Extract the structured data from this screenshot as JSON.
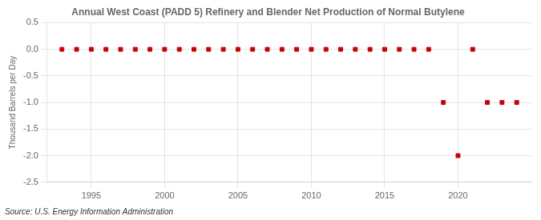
{
  "chart_data": {
    "type": "scatter",
    "title": "Annual West Coast (PADD 5) Refinery and Blender Net Production of Normal Butylene",
    "ylabel": "Thousand Barrels per Day",
    "annotations": [
      "Source: U.S. Energy Information Administration"
    ],
    "x": [
      1993,
      1994,
      1995,
      1996,
      1997,
      1998,
      1999,
      2000,
      2001,
      2002,
      2003,
      2004,
      2005,
      2006,
      2007,
      2008,
      2009,
      2010,
      2011,
      2012,
      2013,
      2014,
      2015,
      2016,
      2017,
      2018,
      2019,
      2020,
      2021,
      2022,
      2023,
      2024
    ],
    "values": [
      0,
      0,
      0,
      0,
      0,
      0,
      0,
      0,
      0,
      0,
      0,
      0,
      0,
      0,
      0,
      0,
      0,
      0,
      0,
      0,
      0,
      0,
      0,
      0,
      0,
      0,
      -1,
      -2,
      0,
      -1,
      -1,
      -1
    ],
    "color": "#cc0000",
    "marker": "square",
    "xlim": [
      1992.0,
      2025.0
    ],
    "ylim": [
      -2.5,
      0.5
    ],
    "xticks": [
      1995,
      2000,
      2005,
      2010,
      2015,
      2020
    ],
    "yticks": [
      0.5,
      {
        "value": 0.0,
        "label": "0.0"
      },
      -0.5,
      {
        "value": -1.0,
        "label": "-1.0"
      },
      -1.5,
      {
        "value": -2.0,
        "label": "-2.0"
      },
      -2.5
    ],
    "grid": true
  }
}
